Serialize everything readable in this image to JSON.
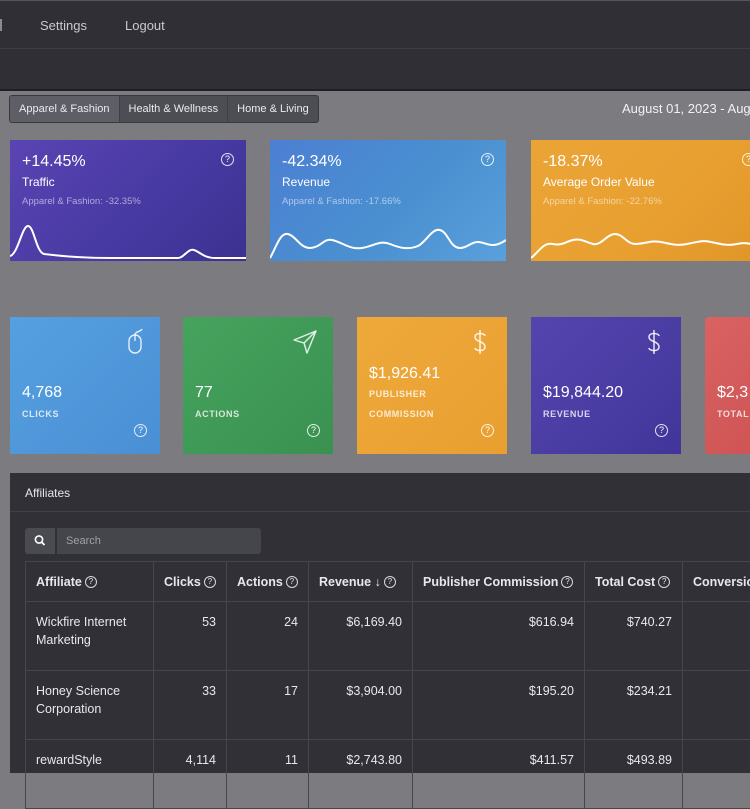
{
  "nav": {
    "settings": "Settings",
    "logout": "Logout"
  },
  "categories": [
    "Apparel & Fashion",
    "Health & Wellness",
    "Home & Living"
  ],
  "date_range": "August 01, 2023 - Aug",
  "help_glyph": "?",
  "trend_cards": [
    {
      "pct": "+14.45%",
      "label": "Traffic",
      "compare": "Apparel & Fashion: -32.35%",
      "color": "#4b3ca0"
    },
    {
      "pct": "-42.34%",
      "label": "Revenue",
      "compare": "Apparel & Fashion: -17.66%",
      "color": "#4a90d0"
    },
    {
      "pct": "-18.37%",
      "label": "Average Order Value",
      "compare": "Apparel & Fashion: -22.76%",
      "color": "#e8a131"
    }
  ],
  "stats": [
    {
      "value": "4,768",
      "label": "CLICKS",
      "icon": "mouse-icon",
      "color": "#4a90d6"
    },
    {
      "value": "77",
      "label": "ACTIONS",
      "icon": "paper-plane-icon",
      "color": "#3f9a56"
    },
    {
      "value": "$1,926.41",
      "label_line1": "PUBLISHER",
      "label_line2": "COMMISSION",
      "icon": "dollar-icon",
      "color": "#e8a131"
    },
    {
      "value": "$19,844.20",
      "label": "REVENUE",
      "icon": "dollar-icon",
      "color": "#4b3ca0"
    },
    {
      "value": "$2,3",
      "label": "TOTAL",
      "color": "#d45a5a"
    }
  ],
  "affiliates": {
    "title": "Affiliates",
    "search_placeholder": "Search",
    "columns": [
      "Affiliate",
      "Clicks",
      "Actions",
      "Revenue ↓",
      "Publisher Commission",
      "Total Cost",
      "Conversion"
    ],
    "rows": [
      {
        "affiliate": "Wickfire Internet Marketing",
        "clicks": "53",
        "actions": "24",
        "revenue": "$6,169.40",
        "commission": "$616.94",
        "total_cost": "$740.27"
      },
      {
        "affiliate": "Honey Science Corporation",
        "clicks": "33",
        "actions": "17",
        "revenue": "$3,904.00",
        "commission": "$195.20",
        "total_cost": "$234.21"
      },
      {
        "affiliate": "rewardStyle",
        "clicks": "4,114",
        "actions": "11",
        "revenue": "$2,743.80",
        "commission": "$411.57",
        "total_cost": "$493.89"
      }
    ]
  }
}
